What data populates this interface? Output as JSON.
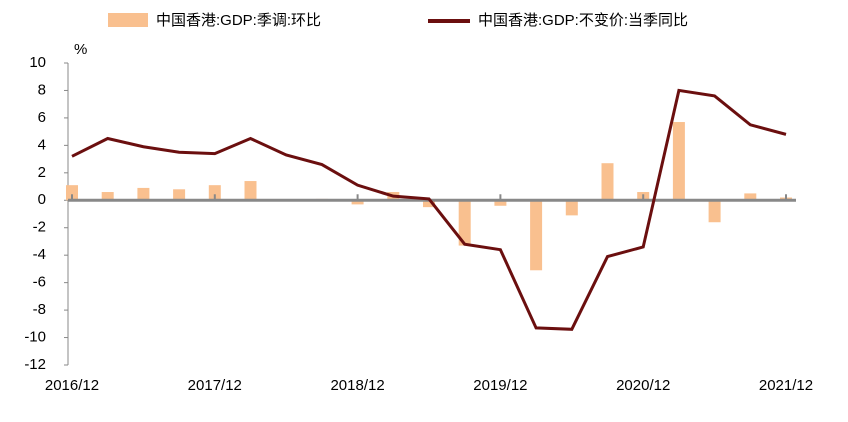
{
  "chart_data": {
    "type": "bar-line",
    "y_unit": "%",
    "categories": [
      "2016/12",
      null,
      null,
      null,
      "2017/12",
      null,
      null,
      null,
      "2018/12",
      null,
      null,
      null,
      "2019/12",
      null,
      null,
      null,
      "2020/12",
      null,
      null,
      null,
      "2021/12"
    ],
    "series": [
      {
        "name": "中国香港:GDP:季调:环比",
        "type": "bar",
        "color": "#f9c08f",
        "values": [
          1.1,
          0.6,
          0.9,
          0.8,
          1.1,
          1.4,
          0,
          0.1,
          -0.3,
          0.6,
          -0.5,
          -3.3,
          -0.4,
          -5.1,
          -1.1,
          2.7,
          0.6,
          5.7,
          -1.6,
          0.5,
          0.2
        ]
      },
      {
        "name": "中国香港:GDP:不变价:当季同比",
        "type": "line",
        "color": "#6b0f0f",
        "values": [
          3.2,
          4.5,
          3.9,
          3.5,
          3.4,
          4.5,
          3.3,
          2.6,
          1.1,
          0.3,
          0.1,
          -3.2,
          -3.6,
          -9.3,
          -9.4,
          -4.1,
          -3.4,
          8.0,
          7.6,
          5.5,
          4.8
        ]
      }
    ],
    "ylim": [
      -12,
      10
    ],
    "yticks": [
      -12,
      -10,
      -8,
      -6,
      -4,
      -2,
      0,
      2,
      4,
      6,
      8,
      10
    ]
  }
}
